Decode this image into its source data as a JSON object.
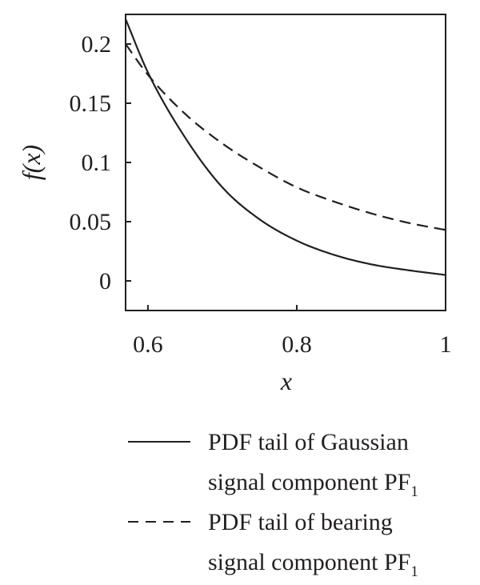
{
  "chart_data": {
    "type": "line",
    "xlabel": "x",
    "ylabel": "f(x)",
    "xlim": [
      0.57,
      1.0
    ],
    "ylim": [
      -0.025,
      0.225
    ],
    "xticks": [
      0.6,
      0.8,
      1.0
    ],
    "xtick_labels": [
      "0.6",
      "0.8",
      "1"
    ],
    "yticks": [
      0,
      0.05,
      0.1,
      0.15,
      0.2
    ],
    "ytick_labels": [
      "0",
      "0.05",
      "0.1",
      "0.15",
      "0.2"
    ],
    "grid": false,
    "legend_position": "bottom",
    "x": [
      0.57,
      0.6,
      0.65,
      0.7,
      0.75,
      0.8,
      0.85,
      0.9,
      0.95,
      1.0
    ],
    "series": [
      {
        "name": "PDF tail of Gaussian signal component PF1",
        "legend_main": "PDF tail of Gaussian",
        "legend_second": "signal component PF",
        "legend_subscript": "1",
        "style": "solid",
        "color": "#231f20",
        "values": [
          0.221,
          0.176,
          0.121,
          0.079,
          0.052,
          0.034,
          0.022,
          0.014,
          0.009,
          0.005
        ]
      },
      {
        "name": "PDF tail of bearing signal component PF1",
        "legend_main": "PDF tail of bearing",
        "legend_second": "signal component PF",
        "legend_subscript": "1",
        "style": "dashed",
        "color": "#231f20",
        "values": [
          0.2,
          0.174,
          0.141,
          0.116,
          0.096,
          0.079,
          0.067,
          0.057,
          0.049,
          0.043
        ]
      }
    ]
  }
}
